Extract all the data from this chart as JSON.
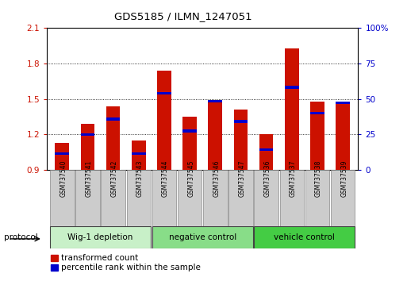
{
  "title": "GDS5185 / ILMN_1247051",
  "samples": [
    "GSM737540",
    "GSM737541",
    "GSM737542",
    "GSM737543",
    "GSM737544",
    "GSM737545",
    "GSM737546",
    "GSM737547",
    "GSM737536",
    "GSM737537",
    "GSM737538",
    "GSM737539"
  ],
  "red_values": [
    1.13,
    1.29,
    1.44,
    1.15,
    1.74,
    1.35,
    1.49,
    1.41,
    1.2,
    1.93,
    1.48,
    1.48
  ],
  "blue_values": [
    1.04,
    1.2,
    1.33,
    1.04,
    1.55,
    1.23,
    1.48,
    1.31,
    1.07,
    1.6,
    1.38,
    1.47
  ],
  "ymin": 0.9,
  "ymax": 2.1,
  "yticks": [
    0.9,
    1.2,
    1.5,
    1.8,
    2.1
  ],
  "right_yticks_pct": [
    0,
    25,
    50,
    75,
    100
  ],
  "groups": [
    {
      "label": "Wig-1 depletion",
      "indices": [
        0,
        1,
        2,
        3
      ],
      "color": "#c8f0c8"
    },
    {
      "label": "negative control",
      "indices": [
        4,
        5,
        6,
        7
      ],
      "color": "#88dd88"
    },
    {
      "label": "vehicle control",
      "indices": [
        8,
        9,
        10,
        11
      ],
      "color": "#44cc44"
    }
  ],
  "bar_color": "#cc1100",
  "blue_color": "#0000cc",
  "bar_width": 0.55,
  "blue_bar_height": 0.022,
  "protocol_label": "protocol",
  "legend_red": "transformed count",
  "legend_blue": "percentile rank within the sample"
}
